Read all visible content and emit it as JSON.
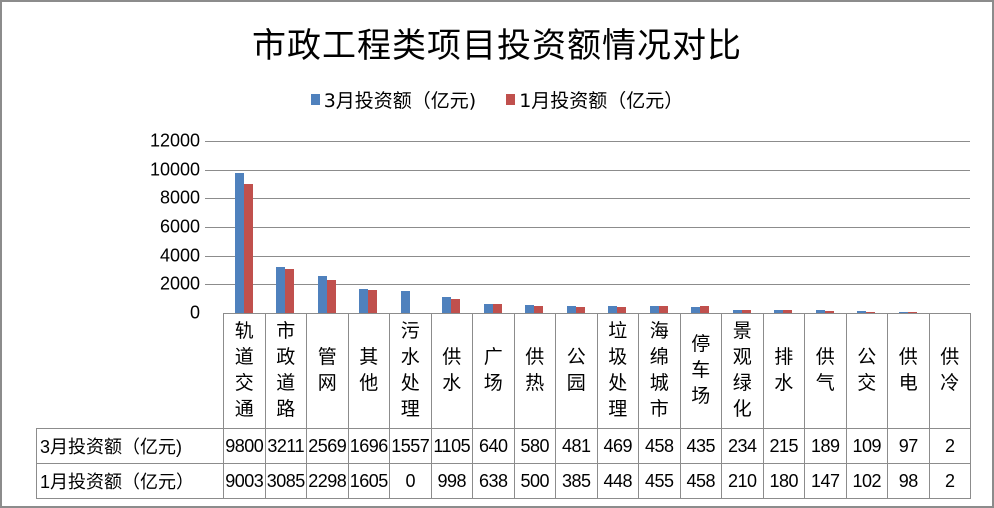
{
  "chart_data": {
    "type": "bar",
    "title": "市政工程类项目投资额情况对比",
    "xlabel": "",
    "ylabel": "",
    "ylim": [
      0,
      12000
    ],
    "yticks": [
      0,
      2000,
      4000,
      6000,
      8000,
      10000,
      12000
    ],
    "grid": true,
    "legend_position": "top",
    "categories": [
      "轨道交通",
      "市政道路",
      "管网",
      "其他",
      "污水处理",
      "供水",
      "广场",
      "供热",
      "公园",
      "垃圾处理",
      "海绵城市",
      "停车场",
      "景观绿化",
      "排水",
      "供气",
      "公交",
      "供电",
      "供冷"
    ],
    "series": [
      {
        "name": "3月投资额（亿元)",
        "color": "#4f81bd",
        "values": [
          9800,
          3211,
          2569,
          1696,
          1557,
          1105,
          640,
          580,
          481,
          469,
          458,
          435,
          234,
          215,
          189,
          109,
          97,
          2
        ]
      },
      {
        "name": "1月投资额（亿元）",
        "color": "#c0504d",
        "values": [
          9003,
          3085,
          2298,
          1605,
          0,
          998,
          638,
          500,
          385,
          448,
          455,
          458,
          210,
          180,
          147,
          102,
          98,
          2
        ]
      }
    ],
    "data_table": true
  },
  "title": "市政工程类项目投资额情况对比",
  "legend": [
    {
      "label": "3月投资额（亿元)",
      "color": "#4f81bd"
    },
    {
      "label": "1月投资额（亿元）",
      "color": "#c0504d"
    }
  ],
  "yaxis": {
    "ticks": [
      "12000",
      "10000",
      "8000",
      "6000",
      "4000",
      "2000",
      "0"
    ]
  },
  "table": {
    "row_headers": [
      "3月投资额（亿元)",
      "1月投资额（亿元）"
    ]
  }
}
